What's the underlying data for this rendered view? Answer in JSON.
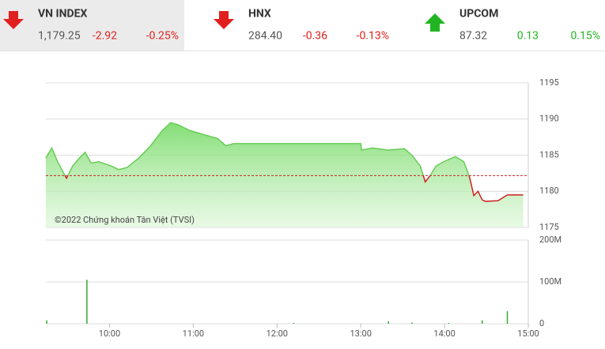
{
  "indices": [
    {
      "name": "VN INDEX",
      "value": "1,179.25",
      "change": "-2.92",
      "percent": "-0.25%",
      "color": "#e0201f",
      "arrow": "down"
    },
    {
      "name": "HNX",
      "value": "284.40",
      "change": "-0.36",
      "percent": "-0.13%",
      "color": "#e0201f",
      "arrow": "down"
    },
    {
      "name": "UPCOM",
      "value": "87.32",
      "change": "0.13",
      "percent": "0.15%",
      "color": "#22b522",
      "arrow": "up"
    }
  ],
  "chart_data": [
    {
      "type": "line",
      "watermark": "©2022 Chứng khoán Tân Việt (TVSI)",
      "x": [
        9.24,
        9.31,
        9.38,
        9.43,
        9.486,
        9.56,
        9.64,
        9.71,
        9.78,
        9.87,
        10.02,
        10.11,
        10.21,
        10.35,
        10.49,
        10.63,
        10.73,
        10.82,
        10.96,
        11.11,
        11.29,
        11.39,
        11.48,
        13.0,
        13.01,
        13.14,
        13.33,
        13.52,
        13.61,
        13.71,
        13.77,
        13.83,
        13.9,
        13.99,
        14.13,
        14.23,
        14.3,
        14.35,
        14.4,
        14.45,
        14.49,
        14.64,
        14.75,
        14.94
      ],
      "values": [
        1184.6,
        1186.0,
        1184.1,
        1183.0,
        1181.8,
        1183.5,
        1184.6,
        1185.4,
        1183.9,
        1184.1,
        1183.5,
        1183.0,
        1183.3,
        1184.6,
        1186.3,
        1188.4,
        1189.5,
        1189.2,
        1188.4,
        1187.9,
        1187.3,
        1186.3,
        1186.6,
        1186.6,
        1185.7,
        1186.0,
        1185.7,
        1185.9,
        1185.0,
        1183.5,
        1181.3,
        1182.2,
        1183.5,
        1184.1,
        1184.8,
        1184.1,
        1181.9,
        1179.4,
        1180.0,
        1178.8,
        1178.6,
        1178.7,
        1179.5,
        1179.5
      ],
      "reference": 1182.17,
      "up_color": "#66cc55",
      "down_color": "#cc2222",
      "xlim": [
        9.24,
        15
      ],
      "ylim": [
        1175,
        1195
      ],
      "yticks": [
        1175,
        1180,
        1185,
        1190,
        1195
      ],
      "grid": true
    },
    {
      "type": "bar",
      "color": "#33aa33",
      "x": [
        9.25,
        9.73,
        12.2,
        13.33,
        13.61,
        14.05,
        14.45,
        14.75
      ],
      "values": [
        8000000,
        105000000,
        2000000,
        6000000,
        3000000,
        2000000,
        8000000,
        30000000
      ],
      "xlim": [
        9.24,
        15
      ],
      "ylim": [
        0,
        200000000
      ],
      "yticks": [
        {
          "value": 0,
          "label": "0"
        },
        {
          "value": 100000000,
          "label": "100M"
        },
        {
          "value": 200000000,
          "label": "200M"
        }
      ],
      "xticks": [
        {
          "value": 10,
          "label": "10:00"
        },
        {
          "value": 11,
          "label": "11:00"
        },
        {
          "value": 12,
          "label": "12:00"
        },
        {
          "value": 13,
          "label": "13:00"
        },
        {
          "value": 14,
          "label": "14:00"
        },
        {
          "value": 15,
          "label": "15:00"
        }
      ],
      "grid": true
    }
  ]
}
